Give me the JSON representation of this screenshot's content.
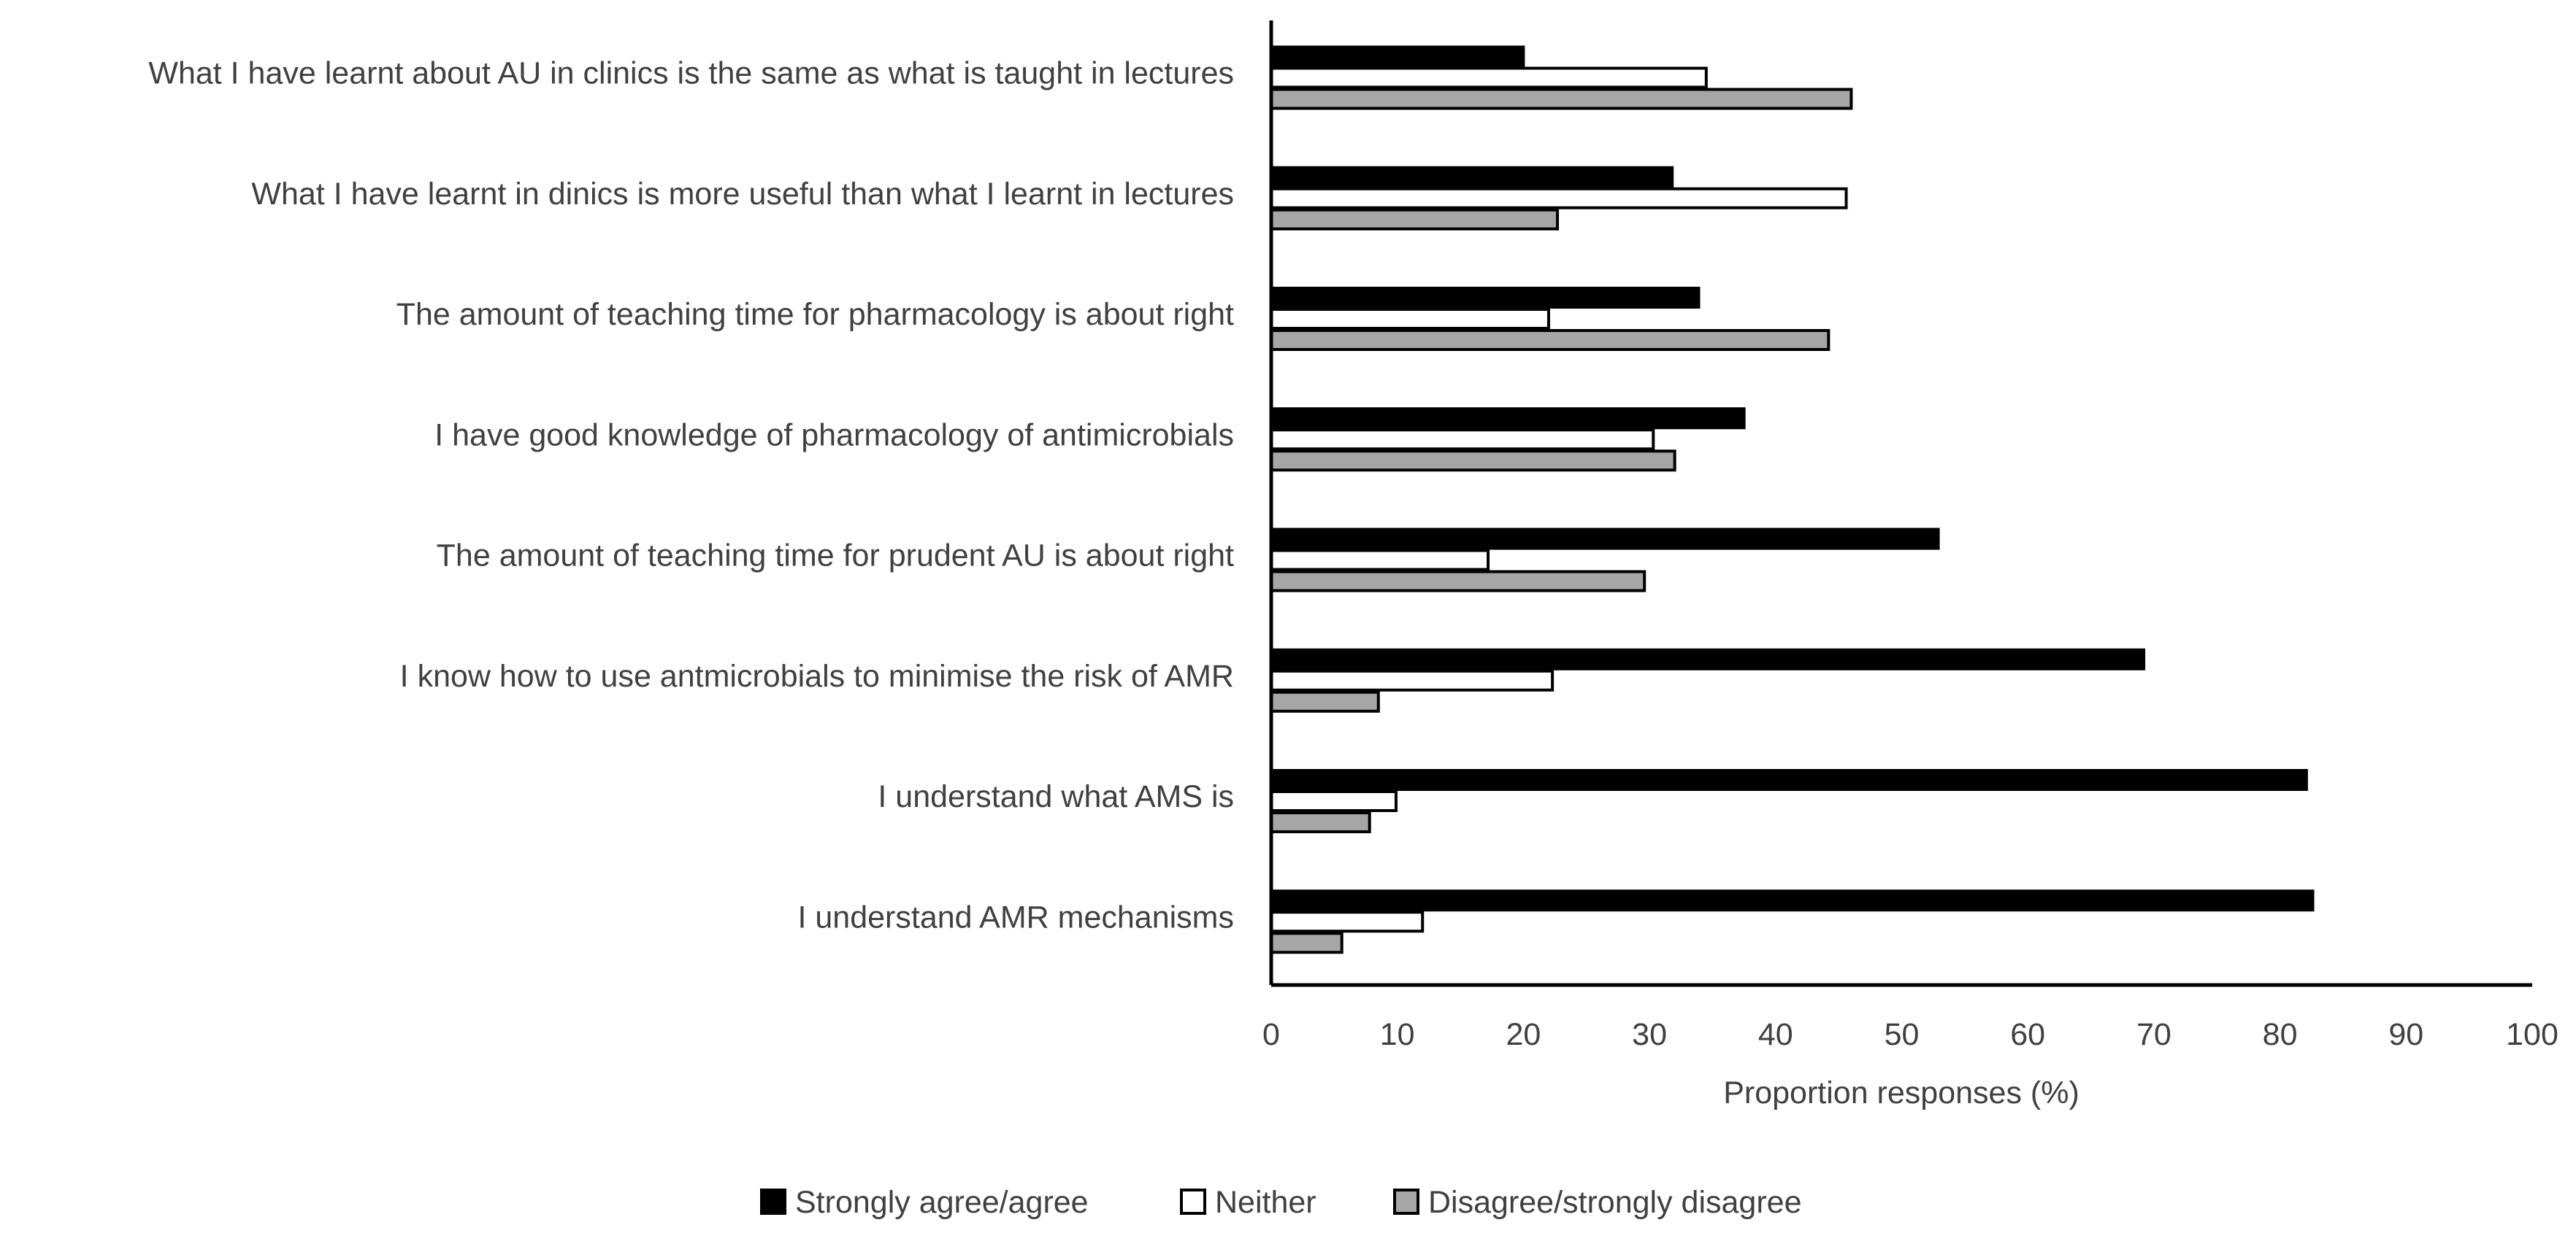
{
  "chart_data": {
    "type": "bar",
    "orientation": "horizontal",
    "categories": [
      "What I have learnt about AU in clinics is the same as what is taught in lectures",
      "What I have learnt in dinics is more useful than what I learnt in lectures",
      "The amount of teaching time for pharmacology is about right",
      "I have good knowledge of pharmacology of antimicrobials",
      "The amount of teaching time for prudent AU is about right",
      "I know how to use antmicrobials to minimise the risk of AMR",
      "I understand what AMS is",
      "I understand AMR mechanisms"
    ],
    "series": [
      {
        "name": "Strongly agree/agree",
        "color": "#000000",
        "values": [
          20,
          31.8,
          33.9,
          37.5,
          52.9,
          69.2,
          82.1,
          82.6
        ]
      },
      {
        "name": "Neither",
        "color": "#ffffff",
        "values": [
          34.5,
          45.6,
          22,
          30.3,
          17.2,
          22.3,
          9.9,
          12
        ]
      },
      {
        "name": "Disagree/strongly disagree",
        "color": "#a6a6a6",
        "values": [
          46,
          22.7,
          44.2,
          32,
          29.6,
          8.5,
          7.8,
          5.6
        ]
      }
    ],
    "xlabel": "Proportion responses (%)",
    "ylabel": "",
    "xlim": [
      0,
      100
    ],
    "xticks": [
      "0",
      "10",
      "20",
      "30",
      "40",
      "50",
      "60",
      "70",
      "80",
      "90",
      "100"
    ],
    "grid": false,
    "legend_position": "bottom"
  }
}
